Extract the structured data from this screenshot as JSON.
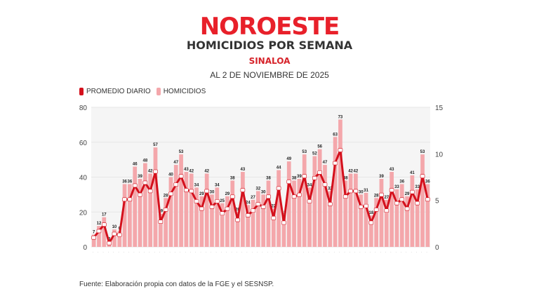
{
  "header": {
    "brand": "NOROESTE",
    "title": "HOMICIDIOS POR SEMANA",
    "region": "SINALOA",
    "date": "AL 2 DE NOVIEMBRE DE 2025"
  },
  "legend": {
    "line_label": "PROMEDIO DIARIO",
    "bar_label": "HOMICIDIOS"
  },
  "colors": {
    "brand": "#e8202a",
    "line": "#d4101c",
    "bars": "#f4a7ab",
    "plot_bg": "#f5f5f5"
  },
  "source": "Fuente: Elaboración propia con datos de la FGE y el SESNSP.",
  "chart_data": {
    "type": "bar",
    "title": "HOMICIDIOS POR SEMANA - SINALOA",
    "subtitle": "AL 2 DE NOVIEMBRE DE 2025",
    "xlabel": "",
    "ylabel": "Homicidios",
    "ylabel_right": "Promedio diario",
    "ylim": [
      0,
      80
    ],
    "ylim_right": [
      0,
      15
    ],
    "yticks": [
      0,
      20,
      40,
      60,
      80
    ],
    "yticks_right": [
      0,
      5,
      10,
      15
    ],
    "grid": true,
    "legend_position": "top-left",
    "series": [
      {
        "name": "HOMICIDIOS",
        "type": "bar",
        "values": [
          7,
          12,
          17,
          3,
          10,
          9,
          36,
          36,
          46,
          39,
          48,
          42,
          57,
          19,
          28,
          40,
          47,
          53,
          43,
          42,
          34,
          29,
          42,
          30,
          34,
          25,
          29,
          38,
          20,
          43,
          24,
          27,
          32,
          30,
          38,
          22,
          44,
          18,
          49,
          38,
          39,
          53,
          34,
          52,
          56,
          47,
          32,
          63,
          73,
          38,
          42,
          42,
          30,
          31,
          18,
          28,
          39,
          27,
          43,
          33,
          36,
          29,
          41,
          33,
          53,
          36
        ]
      },
      {
        "name": "PROMEDIO DIARIO",
        "type": "line",
        "axis": "right",
        "values": [
          1,
          1.7,
          2.4,
          0.4,
          1.4,
          1.3,
          5.1,
          5.1,
          6.6,
          5.6,
          6.9,
          6,
          8.1,
          2.7,
          4,
          5.7,
          6.7,
          7.6,
          6.1,
          6,
          4.9,
          4.1,
          6,
          4.3,
          4.9,
          3.6,
          4.1,
          5.4,
          2.9,
          6.1,
          3.4,
          3.9,
          4.6,
          4.3,
          5.4,
          3.1,
          6.3,
          2.6,
          7,
          5.4,
          5.6,
          7.6,
          4.9,
          7.4,
          8,
          6.7,
          4.6,
          9,
          10.4,
          5.4,
          6,
          6,
          4.3,
          4.4,
          2.6,
          4,
          5.6,
          3.9,
          6.1,
          4.7,
          5.1,
          4.1,
          5.9,
          4.7,
          7.6,
          5.1
        ]
      }
    ]
  }
}
